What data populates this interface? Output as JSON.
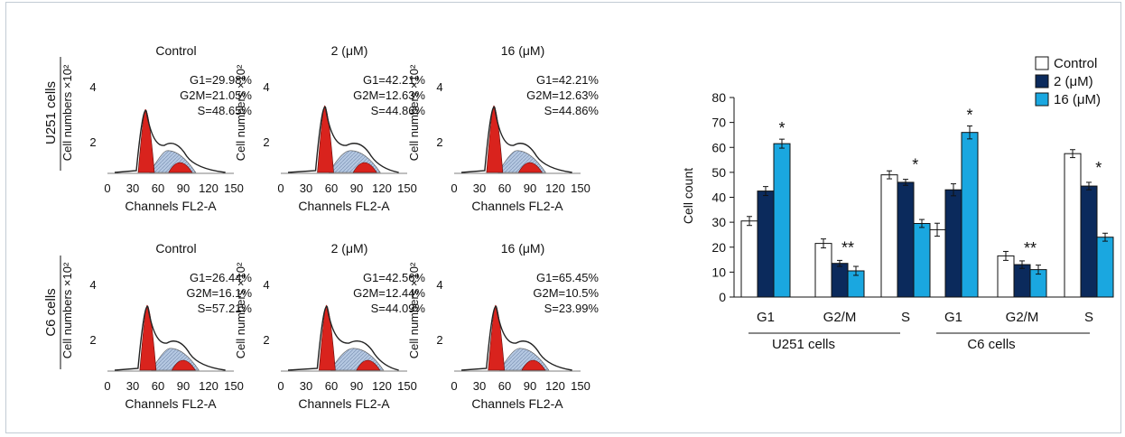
{
  "colors": {
    "control": "#ffffff",
    "dose2": "#0b2a5c",
    "dose16": "#1aa7e0",
    "peak_fill": "#d9231d",
    "hatch_fill": "#aac0dc",
    "frame_border": "#c2cbd4"
  },
  "histograms": {
    "row_labels": [
      "U251 cells",
      "C6 cells"
    ],
    "y_label": "Cell numbers ×10²",
    "x_label": "Channels FL2-A",
    "x_ticks": [
      "0",
      "30",
      "60",
      "90",
      "120",
      "150"
    ],
    "y_ticks": [
      "2",
      "4"
    ],
    "panels": [
      {
        "title": "Control",
        "stats": [
          "G1=29.98%",
          "G2M=21.05%",
          "S=48.65%"
        ]
      },
      {
        "title": "2 (μM)",
        "stats": [
          "G1=42.21%",
          "G2M=12.63%",
          "S=44.86%"
        ]
      },
      {
        "title": "16 (μM)",
        "stats": [
          "G1=42.21%",
          "G2M=12.63%",
          "S=44.86%"
        ]
      },
      {
        "title": "Control",
        "stats": [
          "G1=26.44%",
          "G2M=16.1%",
          "S=57.21%"
        ]
      },
      {
        "title": "2 (μM)",
        "stats": [
          "G1=42.56%",
          "G2M=12.44%",
          "S=44.09%"
        ]
      },
      {
        "title": "16 (μM)",
        "stats": [
          "G1=65.45%",
          "G2M=10.5%",
          "S=23.99%"
        ]
      }
    ]
  },
  "chart_data": {
    "type": "bar",
    "ylabel": "Cell count",
    "ylim": [
      0,
      80
    ],
    "yticks": [
      0,
      10,
      20,
      30,
      40,
      50,
      60,
      70,
      80
    ],
    "groups": [
      {
        "label": "U251 cells",
        "categories": [
          "G1",
          "G2/M",
          "S"
        ]
      },
      {
        "label": "C6 cells",
        "categories": [
          "G1",
          "G2/M",
          "S"
        ]
      }
    ],
    "series": [
      {
        "name": "Control",
        "values": [
          30.5,
          21.5,
          49,
          27,
          16.5,
          57.5
        ],
        "errors": [
          1.8,
          1.8,
          1.6,
          2.6,
          1.8,
          1.6
        ]
      },
      {
        "name": "2 (μM)",
        "values": [
          42.5,
          13.5,
          46,
          43,
          13,
          44.5
        ],
        "errors": [
          1.8,
          1.2,
          1.2,
          2.4,
          1.5,
          1.5
        ]
      },
      {
        "name": "16 (μM)",
        "values": [
          61.5,
          10.5,
          29.5,
          66,
          11,
          24
        ],
        "errors": [
          1.8,
          1.8,
          1.6,
          2.6,
          1.8,
          1.6
        ]
      }
    ],
    "annotations": [
      "*",
      "**",
      "*",
      "*",
      "**",
      "*"
    ],
    "legend": "top-right",
    "grid": false
  }
}
